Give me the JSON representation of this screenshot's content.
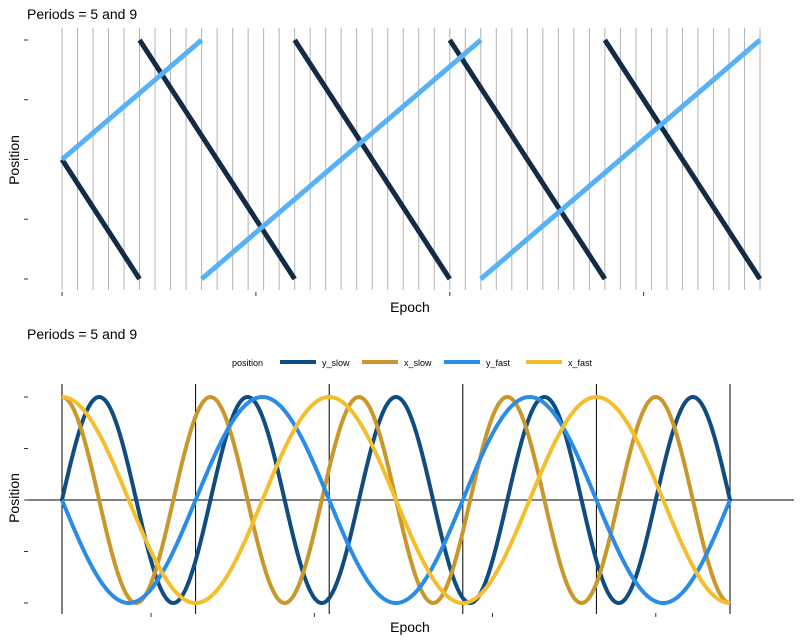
{
  "chart_data": [
    {
      "type": "line",
      "title": "Periods = 5 and 9",
      "xlabel": "Epoch",
      "ylabel": "Position",
      "grid": false,
      "legend": "none",
      "colors": {
        "slow": "#132b43",
        "fast": "#56b1f7",
        "vline": "#b3b3b3"
      },
      "xlim": [
        0,
        45
      ],
      "ylim": [
        0,
        4
      ],
      "series": [
        {
          "key": "slow",
          "segments": [
            [
              [
                0,
                2
              ],
              [
                5,
                0
              ]
            ],
            [
              [
                5,
                4
              ],
              [
                15,
                0
              ]
            ],
            [
              [
                15,
                4
              ],
              [
                25,
                0
              ]
            ],
            [
              [
                25,
                4
              ],
              [
                35,
                0
              ]
            ],
            [
              [
                35,
                4
              ],
              [
                45,
                0
              ]
            ]
          ]
        },
        {
          "key": "fast",
          "segments": [
            [
              [
                0,
                2
              ],
              [
                9,
                4
              ]
            ],
            [
              [
                9,
                0
              ],
              [
                27,
                4
              ]
            ],
            [
              [
                27,
                0
              ],
              [
                45,
                4
              ]
            ]
          ]
        }
      ],
      "vlines": [
        0,
        1,
        2,
        3,
        4,
        5,
        6,
        7,
        8,
        9,
        10,
        11,
        12,
        13,
        14,
        15,
        16,
        17,
        18,
        19,
        20,
        21,
        22,
        23,
        24,
        25,
        26,
        27,
        28,
        29,
        30,
        31,
        32,
        33,
        34,
        35,
        36,
        37,
        38,
        39,
        40,
        41,
        42,
        43,
        44,
        45
      ]
    },
    {
      "type": "line",
      "title": "Periods = 5 and 9",
      "xlabel": "Epoch",
      "ylabel": "Position",
      "grid": false,
      "legend": "top",
      "legend_title": "position",
      "xlim": [
        0,
        45
      ],
      "ylim": [
        -1,
        1
      ],
      "series": [
        {
          "name": "y_slow",
          "color": "#0f4c81",
          "func": "sin",
          "period": 10
        },
        {
          "name": "x_slow",
          "color": "#c9972c",
          "func": "cos",
          "period": 10
        },
        {
          "name": "y_fast",
          "color": "#2b8ce6",
          "func": "-sin",
          "period": 18
        },
        {
          "name": "x_fast",
          "color": "#f4bf2e",
          "func": "cos",
          "period": 18
        }
      ],
      "vlines": [
        0,
        9,
        18,
        27,
        36,
        45
      ],
      "hline": 0
    }
  ]
}
